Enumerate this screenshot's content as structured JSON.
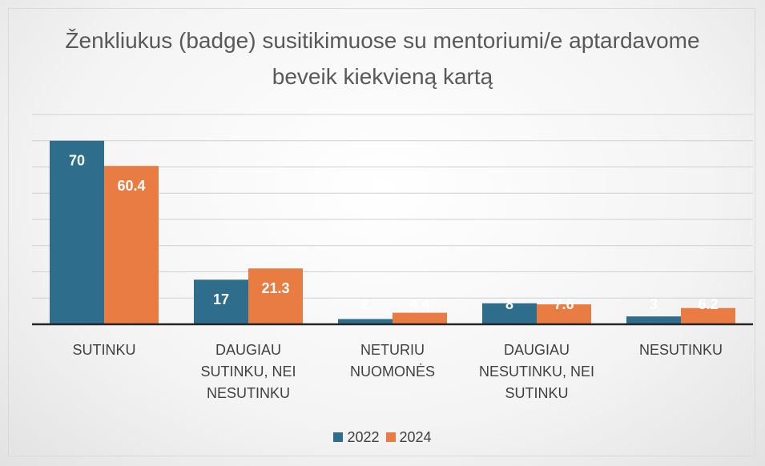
{
  "chart_data": {
    "type": "bar",
    "title": "Ženkliukus (badge) susitikimuose su mentoriumi/e aptardavome beveik kiekvieną kartą",
    "categories": [
      "SUTINKU",
      "DAUGIAU SUTINKU, NEI NESUTINKU",
      "NETURIU NUOMONĖS",
      "DAUGIAU NESUTINKU, NEI SUTINKU",
      "NESUTINKU"
    ],
    "series": [
      {
        "name": "2022",
        "color": "#2e6d8c",
        "values": [
          70,
          17,
          2,
          8,
          3
        ]
      },
      {
        "name": "2024",
        "color": "#e97c43",
        "values": [
          60.4,
          21.3,
          4.4,
          7.6,
          6.2
        ]
      }
    ],
    "ylim": [
      0,
      80
    ],
    "yticks": [
      0,
      10,
      20,
      30,
      40,
      50,
      60,
      70,
      80
    ],
    "grid": true,
    "legend": "bottom"
  }
}
